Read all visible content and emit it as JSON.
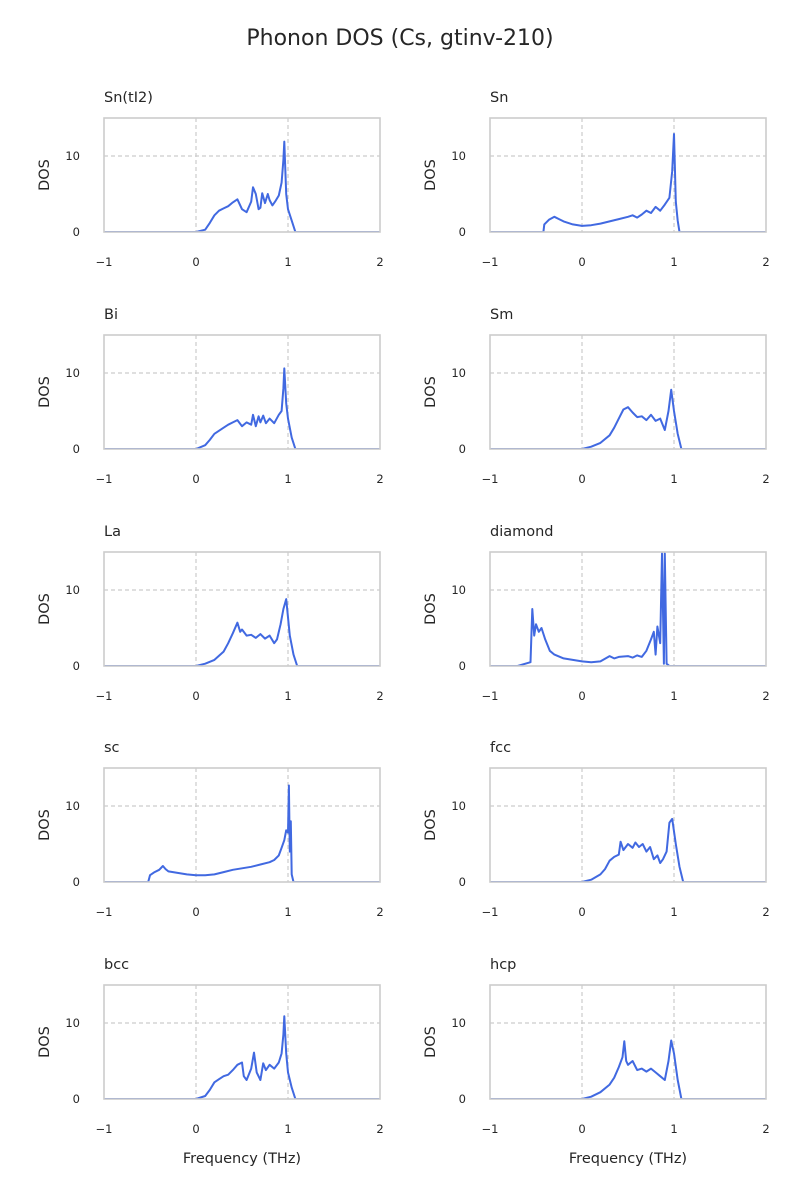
{
  "figure": {
    "title": "Phonon DOS (Cs, gtinv-210)",
    "line_color": "#4169e1",
    "grid_color": "#cccccc"
  },
  "chart_data": [
    {
      "type": "line",
      "title": "Sn(tI2)",
      "xlabel": "",
      "ylabel": "DOS",
      "xlim": [
        -1,
        2
      ],
      "ylim": [
        0,
        15
      ],
      "xticks": [
        -1,
        0,
        1,
        2
      ],
      "yticks": [
        0,
        10
      ],
      "grid": true,
      "legend": "none",
      "series": [
        {
          "x": [
            -1,
            0.0,
            0.1,
            0.15,
            0.2,
            0.25,
            0.3,
            0.35,
            0.4,
            0.45,
            0.5,
            0.55,
            0.6,
            0.62,
            0.65,
            0.68,
            0.7,
            0.72,
            0.75,
            0.78,
            0.8,
            0.83,
            0.86,
            0.9,
            0.93,
            0.95,
            0.96,
            0.98,
            1.0,
            1.04,
            1.08,
            2
          ],
          "y": [
            0,
            0,
            0.3,
            1.2,
            2.2,
            2.8,
            3.1,
            3.4,
            3.9,
            4.3,
            3.0,
            2.6,
            4.0,
            5.9,
            5.0,
            3.0,
            3.2,
            5.1,
            3.8,
            5.0,
            4.2,
            3.5,
            4.0,
            4.8,
            6.5,
            9.5,
            11.9,
            5.0,
            3.0,
            1.5,
            0,
            0
          ]
        }
      ]
    },
    {
      "type": "line",
      "title": "Sn",
      "xlabel": "",
      "ylabel": "DOS",
      "xlim": [
        -1,
        2
      ],
      "ylim": [
        0,
        15
      ],
      "xticks": [
        -1,
        0,
        1,
        2
      ],
      "yticks": [
        0,
        10
      ],
      "grid": true,
      "legend": "none",
      "series": [
        {
          "x": [
            -1,
            -0.42,
            -0.41,
            -0.36,
            -0.3,
            -0.25,
            -0.2,
            -0.1,
            0.0,
            0.1,
            0.2,
            0.3,
            0.4,
            0.5,
            0.55,
            0.6,
            0.65,
            0.7,
            0.75,
            0.8,
            0.85,
            0.9,
            0.95,
            0.98,
            1.0,
            1.02,
            1.04,
            1.06,
            2
          ],
          "y": [
            0,
            0,
            1.0,
            1.6,
            2.0,
            1.7,
            1.4,
            1.0,
            0.8,
            0.9,
            1.1,
            1.4,
            1.7,
            2.0,
            2.2,
            1.9,
            2.3,
            2.8,
            2.5,
            3.3,
            2.8,
            3.6,
            4.5,
            8.0,
            12.9,
            4.0,
            1.5,
            0,
            0
          ]
        }
      ]
    },
    {
      "type": "line",
      "title": "Bi",
      "xlabel": "",
      "ylabel": "DOS",
      "xlim": [
        -1,
        2
      ],
      "ylim": [
        0,
        15
      ],
      "xticks": [
        -1,
        0,
        1,
        2
      ],
      "yticks": [
        0,
        10
      ],
      "grid": true,
      "legend": "none",
      "series": [
        {
          "x": [
            -1,
            0.0,
            0.1,
            0.15,
            0.2,
            0.3,
            0.35,
            0.4,
            0.45,
            0.5,
            0.55,
            0.6,
            0.62,
            0.65,
            0.68,
            0.7,
            0.73,
            0.76,
            0.8,
            0.85,
            0.9,
            0.93,
            0.95,
            0.96,
            0.98,
            1.0,
            1.04,
            1.08,
            2
          ],
          "y": [
            0,
            0,
            0.5,
            1.2,
            2.0,
            2.8,
            3.2,
            3.5,
            3.8,
            3.0,
            3.5,
            3.2,
            4.5,
            3.0,
            4.3,
            3.5,
            4.4,
            3.4,
            4.0,
            3.4,
            4.5,
            5.0,
            8.0,
            10.6,
            6.0,
            4.0,
            1.5,
            0,
            0
          ]
        }
      ]
    },
    {
      "type": "line",
      "title": "Sm",
      "xlabel": "",
      "ylabel": "DOS",
      "xlim": [
        -1,
        2
      ],
      "ylim": [
        0,
        15
      ],
      "xticks": [
        -1,
        0,
        1,
        2
      ],
      "yticks": [
        0,
        10
      ],
      "grid": true,
      "legend": "none",
      "series": [
        {
          "x": [
            -1,
            0.0,
            0.1,
            0.2,
            0.3,
            0.35,
            0.4,
            0.45,
            0.5,
            0.55,
            0.6,
            0.65,
            0.7,
            0.75,
            0.8,
            0.85,
            0.9,
            0.94,
            0.97,
            1.0,
            1.04,
            1.08,
            2
          ],
          "y": [
            0,
            0,
            0.3,
            0.8,
            1.8,
            2.8,
            4.0,
            5.2,
            5.5,
            4.8,
            4.2,
            4.3,
            3.8,
            4.5,
            3.7,
            4.0,
            2.5,
            5.0,
            7.8,
            5.0,
            2.0,
            0,
            0
          ]
        }
      ]
    },
    {
      "type": "line",
      "title": "La",
      "xlabel": "",
      "ylabel": "DOS",
      "xlim": [
        -1,
        2
      ],
      "ylim": [
        0,
        15
      ],
      "xticks": [
        -1,
        0,
        1,
        2
      ],
      "yticks": [
        0,
        10
      ],
      "grid": true,
      "legend": "none",
      "series": [
        {
          "x": [
            -1,
            0.0,
            0.1,
            0.2,
            0.3,
            0.35,
            0.4,
            0.45,
            0.48,
            0.5,
            0.55,
            0.6,
            0.65,
            0.7,
            0.75,
            0.8,
            0.85,
            0.88,
            0.92,
            0.95,
            0.98,
            1.02,
            1.06,
            1.1,
            2
          ],
          "y": [
            0,
            0,
            0.3,
            0.8,
            1.9,
            3.0,
            4.3,
            5.7,
            4.5,
            4.8,
            4.0,
            4.1,
            3.7,
            4.2,
            3.6,
            4.0,
            3.0,
            3.5,
            5.5,
            7.5,
            8.8,
            4.0,
            1.5,
            0,
            0
          ]
        }
      ]
    },
    {
      "type": "line",
      "title": "diamond",
      "xlabel": "",
      "ylabel": "DOS",
      "xlim": [
        -1,
        2
      ],
      "ylim": [
        0,
        15
      ],
      "xticks": [
        -1,
        0,
        1,
        2
      ],
      "yticks": [
        0,
        10
      ],
      "grid": true,
      "legend": "none",
      "series": [
        {
          "x": [
            -1,
            -0.7,
            -0.56,
            -0.54,
            -0.52,
            -0.5,
            -0.47,
            -0.44,
            -0.4,
            -0.35,
            -0.3,
            -0.2,
            -0.1,
            0.0,
            0.1,
            0.2,
            0.3,
            0.35,
            0.4,
            0.5,
            0.55,
            0.6,
            0.65,
            0.7,
            0.75,
            0.78,
            0.8,
            0.82,
            0.85,
            0.87,
            0.89,
            0.9,
            0.92,
            0.95,
            2
          ],
          "y": [
            0,
            0,
            0.5,
            7.5,
            4.0,
            5.5,
            4.5,
            5.0,
            3.5,
            2.0,
            1.5,
            1.0,
            0.8,
            0.6,
            0.5,
            0.6,
            1.3,
            1.0,
            1.2,
            1.3,
            1.1,
            1.4,
            1.2,
            2.0,
            3.5,
            4.5,
            1.5,
            5.2,
            3.0,
            14.8,
            0.3,
            14.8,
            0.3,
            0,
            0
          ]
        }
      ]
    },
    {
      "type": "line",
      "title": "sc",
      "xlabel": "",
      "ylabel": "DOS",
      "xlim": [
        -1,
        2
      ],
      "ylim": [
        0,
        15
      ],
      "xticks": [
        -1,
        0,
        1,
        2
      ],
      "yticks": [
        0,
        10
      ],
      "grid": true,
      "legend": "none",
      "series": [
        {
          "x": [
            -1,
            -0.52,
            -0.5,
            -0.45,
            -0.4,
            -0.36,
            -0.33,
            -0.3,
            -0.2,
            -0.1,
            0.0,
            0.1,
            0.2,
            0.3,
            0.4,
            0.5,
            0.6,
            0.7,
            0.8,
            0.85,
            0.9,
            0.93,
            0.96,
            0.98,
            1.0,
            1.01,
            1.02,
            1.03,
            1.04,
            1.06,
            2
          ],
          "y": [
            0,
            0,
            0.9,
            1.3,
            1.6,
            2.1,
            1.7,
            1.4,
            1.2,
            1.0,
            0.9,
            0.9,
            1.0,
            1.3,
            1.6,
            1.8,
            2.0,
            2.3,
            2.6,
            2.9,
            3.5,
            4.5,
            5.5,
            6.8,
            6.5,
            12.7,
            4.0,
            8.0,
            1.0,
            0,
            0
          ]
        }
      ]
    },
    {
      "type": "line",
      "title": "fcc",
      "xlabel": "",
      "ylabel": "DOS",
      "xlim": [
        -1,
        2
      ],
      "ylim": [
        0,
        15
      ],
      "xticks": [
        -1,
        0,
        1,
        2
      ],
      "yticks": [
        0,
        10
      ],
      "grid": true,
      "legend": "none",
      "series": [
        {
          "x": [
            -1,
            0.0,
            0.1,
            0.2,
            0.25,
            0.3,
            0.35,
            0.4,
            0.42,
            0.45,
            0.5,
            0.55,
            0.58,
            0.62,
            0.66,
            0.7,
            0.74,
            0.78,
            0.82,
            0.85,
            0.88,
            0.92,
            0.95,
            0.98,
            1.02,
            1.06,
            1.1,
            2
          ],
          "y": [
            0,
            0,
            0.3,
            1.0,
            1.7,
            2.8,
            3.3,
            3.6,
            5.3,
            4.2,
            5.0,
            4.5,
            5.2,
            4.6,
            5.0,
            4.0,
            4.6,
            3.0,
            3.5,
            2.5,
            3.0,
            4.0,
            7.8,
            8.3,
            5.0,
            2.0,
            0,
            0
          ]
        }
      ]
    },
    {
      "type": "line",
      "title": "bcc",
      "xlabel": "",
      "ylabel": "DOS",
      "xlim": [
        -1,
        2
      ],
      "ylim": [
        0,
        15
      ],
      "xticks": [
        -1,
        0,
        1,
        2
      ],
      "yticks": [
        0,
        10
      ],
      "grid": true,
      "legend": "none",
      "series": [
        {
          "x": [
            -1,
            0.0,
            0.1,
            0.15,
            0.2,
            0.25,
            0.3,
            0.35,
            0.4,
            0.45,
            0.5,
            0.52,
            0.55,
            0.6,
            0.63,
            0.66,
            0.7,
            0.73,
            0.76,
            0.8,
            0.85,
            0.9,
            0.93,
            0.95,
            0.96,
            0.98,
            1.0,
            1.04,
            1.08,
            2
          ],
          "y": [
            0,
            0,
            0.4,
            1.2,
            2.2,
            2.6,
            3.0,
            3.2,
            3.8,
            4.5,
            4.8,
            3.0,
            2.5,
            4.0,
            6.1,
            3.5,
            2.5,
            4.7,
            3.8,
            4.5,
            4.0,
            4.8,
            6.0,
            8.5,
            10.9,
            6.0,
            3.5,
            1.5,
            0,
            0
          ]
        }
      ]
    },
    {
      "type": "line",
      "title": "hcp",
      "xlabel": "",
      "ylabel": "DOS",
      "xlim": [
        -1,
        2
      ],
      "ylim": [
        0,
        15
      ],
      "xticks": [
        -1,
        0,
        1,
        2
      ],
      "yticks": [
        0,
        10
      ],
      "grid": true,
      "legend": "none",
      "series": [
        {
          "x": [
            -1,
            0.0,
            0.1,
            0.2,
            0.3,
            0.35,
            0.4,
            0.44,
            0.46,
            0.48,
            0.5,
            0.55,
            0.6,
            0.65,
            0.7,
            0.75,
            0.8,
            0.85,
            0.9,
            0.94,
            0.97,
            1.0,
            1.04,
            1.08,
            2
          ],
          "y": [
            0,
            0,
            0.3,
            0.9,
            1.9,
            2.8,
            4.2,
            5.5,
            7.6,
            5.0,
            4.5,
            5.0,
            3.8,
            4.0,
            3.6,
            4.0,
            3.5,
            3.0,
            2.5,
            5.0,
            7.7,
            6.0,
            2.5,
            0,
            0
          ]
        }
      ]
    }
  ]
}
